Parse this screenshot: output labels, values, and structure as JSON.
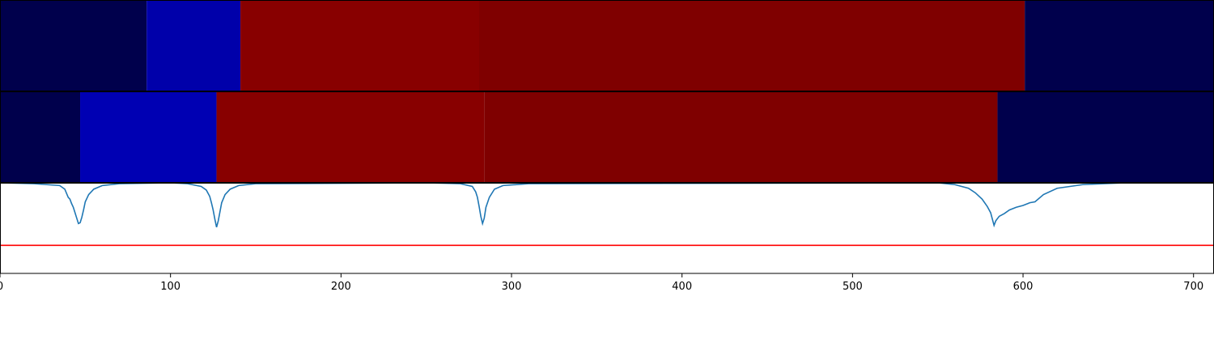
{
  "chart_data": {
    "type": "heatmap",
    "xlim": [
      0,
      712
    ],
    "x_ticks": [
      {
        "value": 0,
        "label": "0"
      },
      {
        "value": 100,
        "label": "100"
      },
      {
        "value": 200,
        "label": "200"
      },
      {
        "value": 300,
        "label": "300"
      },
      {
        "value": 400,
        "label": "400"
      },
      {
        "value": 500,
        "label": "500"
      },
      {
        "value": 600,
        "label": "600"
      },
      {
        "value": 700,
        "label": "700"
      }
    ],
    "label_rows": [
      {
        "segments": [
          {
            "start": 0,
            "end": 86,
            "color": "#00004c"
          },
          {
            "start": 86,
            "end": 141,
            "color": "#0000aa"
          },
          {
            "start": 141,
            "end": 281,
            "color": "#880000"
          },
          {
            "start": 281,
            "end": 601,
            "color": "#7f0000"
          },
          {
            "start": 601,
            "end": 712,
            "color": "#00004c"
          }
        ]
      },
      {
        "segments": [
          {
            "start": 0,
            "end": 47,
            "color": "#00004c"
          },
          {
            "start": 47,
            "end": 127,
            "color": "#0000b3"
          },
          {
            "start": 127,
            "end": 284,
            "color": "#880000"
          },
          {
            "start": 284,
            "end": 585,
            "color": "#7f0000"
          },
          {
            "start": 585,
            "end": 712,
            "color": "#00004c"
          }
        ]
      }
    ],
    "signal": {
      "color": "#1f77b4",
      "ylim": [
        0,
        1
      ],
      "baseline": 1.0,
      "dips": [
        {
          "center": 46,
          "depth": 0.45,
          "width": 3
        },
        {
          "center": 127,
          "depth": 0.5,
          "width": 2.5
        },
        {
          "center": 283,
          "depth": 0.45,
          "width": 2.5
        },
        {
          "center": 583,
          "depth": 0.45,
          "width": 9
        }
      ],
      "x": [
        0,
        20,
        35,
        38,
        40,
        41,
        42,
        43,
        44,
        45,
        46,
        47,
        48,
        49,
        50,
        52,
        55,
        60,
        70,
        100,
        110,
        118,
        121,
        123,
        124,
        125,
        126,
        127,
        128,
        129,
        130,
        132,
        135,
        140,
        150,
        250,
        270,
        277,
        279,
        280,
        281,
        282,
        283,
        284,
        285,
        287,
        290,
        295,
        310,
        550,
        560,
        568,
        572,
        576,
        579,
        581,
        582,
        583,
        584,
        586,
        589,
        592,
        596,
        600,
        604,
        607,
        612,
        620,
        635,
        660,
        712
      ],
      "y": [
        1.0,
        0.99,
        0.97,
        0.93,
        0.84,
        0.82,
        0.77,
        0.73,
        0.67,
        0.61,
        0.55,
        0.56,
        0.62,
        0.7,
        0.79,
        0.87,
        0.93,
        0.97,
        0.99,
        1.0,
        0.99,
        0.96,
        0.92,
        0.85,
        0.78,
        0.7,
        0.6,
        0.51,
        0.58,
        0.68,
        0.78,
        0.87,
        0.93,
        0.97,
        0.99,
        1.0,
        0.99,
        0.96,
        0.9,
        0.84,
        0.74,
        0.63,
        0.55,
        0.61,
        0.73,
        0.84,
        0.93,
        0.97,
        0.99,
        1.0,
        0.98,
        0.94,
        0.89,
        0.82,
        0.74,
        0.67,
        0.6,
        0.53,
        0.58,
        0.63,
        0.66,
        0.7,
        0.73,
        0.75,
        0.78,
        0.79,
        0.87,
        0.94,
        0.98,
        1.0,
        1.0
      ]
    },
    "threshold": {
      "value": 0.31,
      "color": "#ff0000"
    },
    "grid": false
  }
}
